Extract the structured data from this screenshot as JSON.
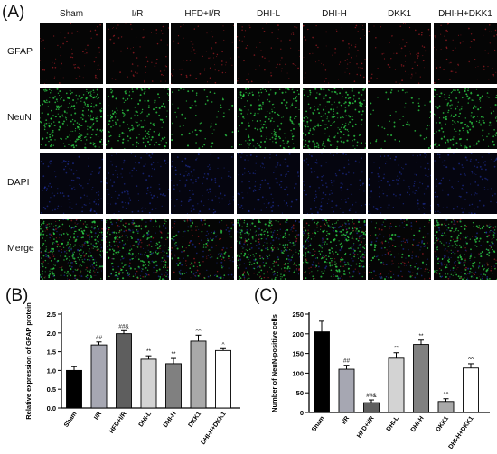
{
  "figure": {
    "panel_a": "(A)",
    "panel_b": "(B)",
    "panel_c": "(C)",
    "columns": [
      "Sham",
      "I/R",
      "HFD+I/R",
      "DHI-L",
      "DHI-H",
      "DKK1",
      "DHI-H+DKK1"
    ],
    "rows": [
      "GFAP",
      "NeuN",
      "DAPI",
      "Merge"
    ],
    "colors": {
      "gfap": "#c4232d",
      "neun": "#2fd84a",
      "dapi": "#2438b8",
      "bg_dark": "#050505"
    }
  },
  "chart_data": [
    {
      "type": "bar",
      "ylabel": "Relative expression of GFAP protein",
      "categories": [
        "Sham",
        "I/R",
        "HFD+I/R",
        "DHI-L",
        "DHI-H",
        "DKK1",
        "DHI-H+DKK1"
      ],
      "values": [
        1.0,
        1.68,
        1.98,
        1.3,
        1.18,
        1.78,
        1.53
      ],
      "errors": [
        0.1,
        0.08,
        0.08,
        0.09,
        0.14,
        0.16,
        0.05
      ],
      "annotations": [
        "",
        "##",
        "##&",
        "**",
        "**",
        "^^",
        "^"
      ],
      "fills": [
        "#000000",
        "#a6a7b2",
        "#5e5e5e",
        "#d3d3d3",
        "#808080",
        "#a9a9a9",
        "#ffffff"
      ],
      "ylim": [
        0,
        2.5
      ],
      "yticks": [
        "0.0",
        "0.5",
        "1.0",
        "1.5",
        "2.0",
        "2.5"
      ]
    },
    {
      "type": "bar",
      "ylabel": "Number of NeuN-positive cells",
      "categories": [
        "Sham",
        "I/R",
        "HFD+I/R",
        "DHI-L",
        "DHI-H",
        "DKK1",
        "DHI-H+DKK1"
      ],
      "values": [
        205,
        110,
        25,
        138,
        173,
        28,
        113
      ],
      "errors": [
        27,
        10,
        7,
        14,
        11,
        7,
        11
      ],
      "annotations": [
        "",
        "##",
        "##&",
        "**",
        "**",
        "^^",
        "^^"
      ],
      "fills": [
        "#000000",
        "#a6a7b2",
        "#5e5e5e",
        "#d3d3d3",
        "#808080",
        "#a9a9a9",
        "#ffffff"
      ],
      "ylim": [
        0,
        250
      ],
      "yticks": [
        "0",
        "50",
        "100",
        "150",
        "200",
        "250"
      ]
    }
  ]
}
